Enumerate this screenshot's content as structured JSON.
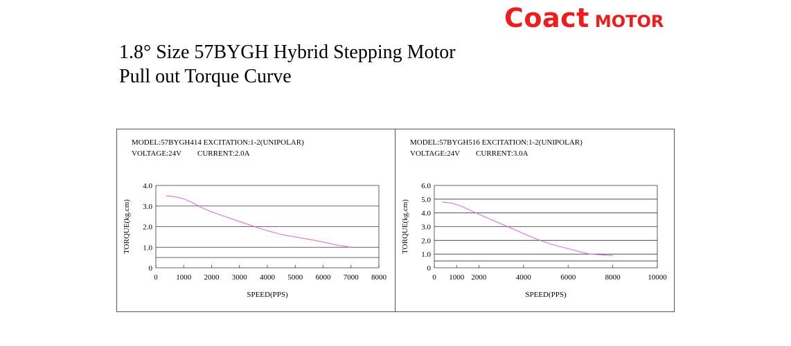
{
  "brand": {
    "name": "Coact",
    "suffix": "MOTOR",
    "color": "#ee1c1c"
  },
  "title_line1": "1.8° Size 57BYGH Hybrid Stepping Motor",
  "title_line2": "Pull out Torque Curve",
  "chart_data": [
    {
      "type": "line",
      "info_line1": "MODEL:57BYGH414  EXCITATION:1-2(UNIPOLAR)",
      "info_line2_a": "VOLTAGE:24V",
      "info_line2_b": "CURRENT:2.0A",
      "xlabel": "SPEED(PPS)",
      "ylabel": "TORQUE(kg.cm)",
      "xlim": [
        0,
        8000
      ],
      "ylim": [
        0,
        4.0
      ],
      "x_ticks": [
        0,
        1000,
        2000,
        3000,
        4000,
        5000,
        6000,
        7000,
        8000
      ],
      "x_tick_labels": [
        "0",
        "1000",
        "2000",
        "3000",
        "4000",
        "5000",
        "6000",
        "7000",
        "8000"
      ],
      "y_ticks": [
        0,
        1.0,
        2.0,
        3.0,
        4.0
      ],
      "y_tick_labels": [
        "0",
        "1.0",
        "2.0",
        "3.0",
        "4.0"
      ],
      "grid": true,
      "line_color": "#e060e0",
      "series": [
        {
          "x": [
            350,
            700,
            1000,
            1300,
            1600,
            2000,
            2500,
            3000,
            3500,
            4000,
            4500,
            5000,
            5500,
            6000,
            6500,
            7000
          ],
          "y": [
            3.5,
            3.45,
            3.35,
            3.18,
            2.95,
            2.72,
            2.48,
            2.25,
            2.02,
            1.8,
            1.62,
            1.5,
            1.38,
            1.25,
            1.1,
            1.0
          ]
        }
      ]
    },
    {
      "type": "line",
      "info_line1": "MODEL:57BYGH516  EXCITATION:1-2(UNIPOLAR)",
      "info_line2_a": "VOLTAGE:24V",
      "info_line2_b": "CURRENT:3.0A",
      "xlabel": "SPEED(PPS)",
      "ylabel": "TORQUE(kg.cm)",
      "xlim": [
        0,
        10000
      ],
      "ylim": [
        0,
        6.0
      ],
      "x_ticks": [
        0,
        1000,
        2000,
        4000,
        6000,
        8000,
        10000
      ],
      "x_tick_labels": [
        "0",
        "1000",
        "2000",
        "4000",
        "6000",
        "8000",
        "10000"
      ],
      "y_ticks": [
        0,
        1.0,
        2.0,
        3.0,
        4.0,
        5.0,
        6.0
      ],
      "y_tick_labels": [
        "0",
        "1.0",
        "2.0",
        "3.0",
        "4.0",
        "5.0",
        "6.0"
      ],
      "grid": true,
      "line_color": "#e060e0",
      "series": [
        {
          "x": [
            350,
            800,
            1200,
            1600,
            2000,
            2500,
            3000,
            3500,
            4000,
            4500,
            5000,
            5500,
            6000,
            6500,
            7000,
            7500,
            8000
          ],
          "y": [
            4.8,
            4.7,
            4.5,
            4.2,
            3.9,
            3.55,
            3.2,
            2.85,
            2.5,
            2.15,
            1.85,
            1.6,
            1.4,
            1.18,
            1.0,
            0.95,
            0.9
          ]
        }
      ]
    }
  ]
}
